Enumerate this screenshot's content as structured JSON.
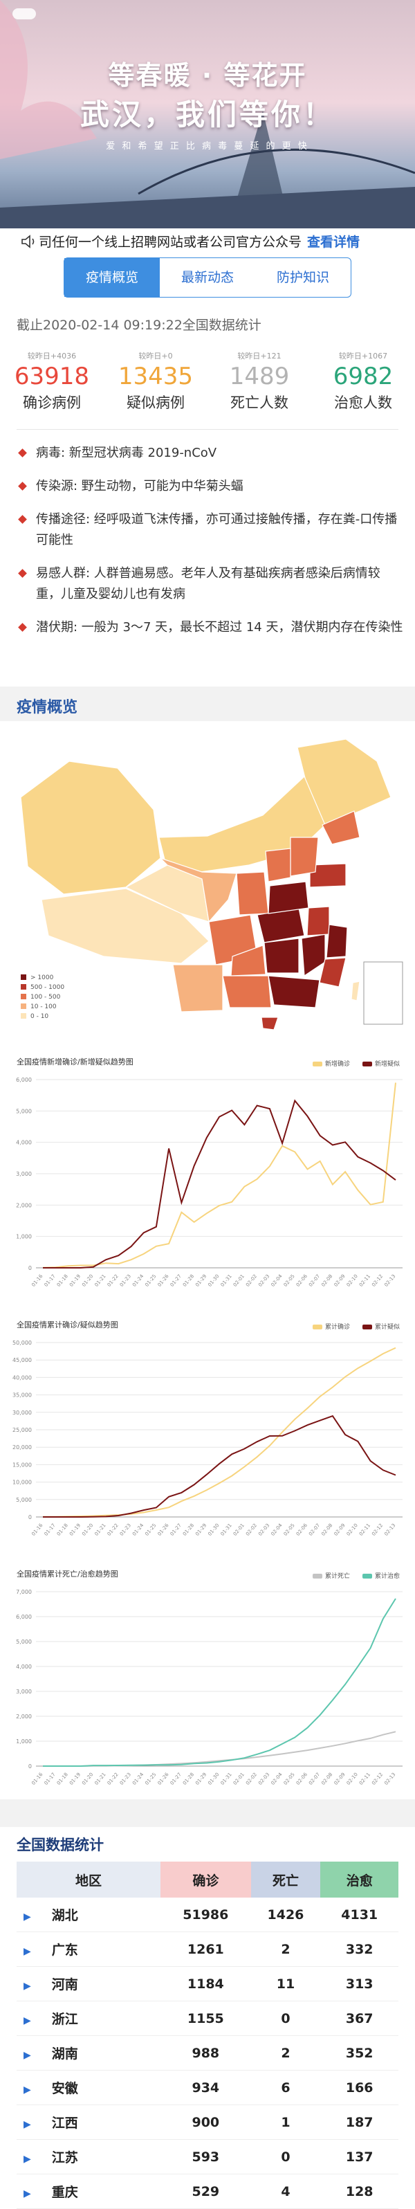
{
  "banner": {
    "line1": "等春暖 · 等花开",
    "line2": "武汉，我们等你！",
    "tagline": "爱 和 希 望 正 比 病 毒 蔓 延 的 更 快"
  },
  "notice": {
    "text": "司任何一个线上招聘网站或者公司官方公众号",
    "link": "查看详情"
  },
  "tabs": [
    "疫情概览",
    "最新动态",
    "防护知识"
  ],
  "update": "截止2020-02-14 09:19:22全国数据统计",
  "stats": [
    {
      "change": "较昨日+4036",
      "value": 63918,
      "label": "确诊病例",
      "color": "#e8483b"
    },
    {
      "change": "较昨日+0",
      "value": 13435,
      "label": "疑似病例",
      "color": "#f0a63a"
    },
    {
      "change": "较昨日+121",
      "value": 1489,
      "label": "死亡人数",
      "color": "#b3b3b3"
    },
    {
      "change": "较昨日+1067",
      "value": 6982,
      "label": "治愈人数",
      "color": "#2ba57a"
    }
  ],
  "facts": [
    "病毒: 新型冠状病毒 2019-nCoV",
    "传染源: 野生动物，可能为中华菊头蝠",
    "传播途径: 经呼吸道飞沫传播，亦可通过接触传播，存在粪-口传播可能性",
    "易感人群: 人群普遍易感。老年人及有基础疾病者感染后病情较重，儿童及婴幼儿也有发病",
    "潜伏期: 一般为 3～7 天，最长不超过 14 天，潜伏期内存在传染性"
  ],
  "section_title": "疫情概览",
  "map_legend": [
    {
      "label": "> 1000",
      "color": "#7a1414"
    },
    {
      "label": "500 - 1000",
      "color": "#b8372a"
    },
    {
      "label": "100 - 500",
      "color": "#e4734c"
    },
    {
      "label": "10 - 100",
      "color": "#f6b27f"
    },
    {
      "label": "0 - 10",
      "color": "#fde4b8"
    }
  ],
  "chart_data": [
    {
      "type": "line",
      "title": "全国疫情新增确诊/新增疑似趋势图",
      "x": [
        "01-16",
        "01-17",
        "01-18",
        "01-19",
        "01-20",
        "01-21",
        "01-22",
        "01-23",
        "01-24",
        "01-25",
        "01-26",
        "01-27",
        "01-28",
        "01-29",
        "01-30",
        "01-31",
        "02-01",
        "02-02",
        "02-03",
        "02-04",
        "02-05",
        "02-06",
        "02-07",
        "02-08",
        "02-09",
        "02-10",
        "02-11",
        "02-12",
        "02-13"
      ],
      "series": [
        {
          "name": "新增确诊",
          "color": "#f7d47e",
          "values": [
            4,
            17,
            59,
            77,
            77,
            149,
            131,
            259,
            444,
            688,
            769,
            1771,
            1459,
            1737,
            1982,
            2102,
            2590,
            2829,
            3235,
            3887,
            3694,
            3143,
            3399,
            2656,
            3062,
            2478,
            2015,
            2100,
            5900
          ]
        },
        {
          "name": "新增疑似",
          "color": "#7a1414",
          "values": [
            0,
            0,
            0,
            0,
            27,
            257,
            393,
            680,
            1118,
            1309,
            3806,
            2077,
            3248,
            4148,
            4812,
            5019,
            4562,
            5173,
            5072,
            3971,
            5328,
            4833,
            4214,
            3916,
            4008,
            3536,
            3342,
            3100,
            2800
          ]
        }
      ],
      "ylim": [
        0,
        6000
      ],
      "yticks": [
        0,
        {
          "value": 1000,
          "label": "1,000"
        },
        {
          "value": 2000,
          "label": "2,000"
        },
        {
          "value": 3000,
          "label": "3,000"
        },
        {
          "value": 4000,
          "label": "4,000"
        },
        {
          "value": 5000,
          "label": "5,000"
        },
        {
          "value": 6000,
          "label": "6,000"
        }
      ],
      "grid": true,
      "legend": "top-right"
    },
    {
      "type": "line",
      "title": "全国疫情累计确诊/疑似趋势图",
      "x": [
        "01-16",
        "01-17",
        "01-18",
        "01-19",
        "01-20",
        "01-21",
        "01-22",
        "01-23",
        "01-24",
        "01-25",
        "01-26",
        "01-27",
        "01-28",
        "01-29",
        "01-30",
        "01-31",
        "02-01",
        "02-02",
        "02-03",
        "02-04",
        "02-05",
        "02-06",
        "02-07",
        "02-08",
        "02-09",
        "02-10",
        "02-11",
        "02-12",
        "02-13"
      ],
      "series": [
        {
          "name": "累计确诊",
          "color": "#f7d47e",
          "values": [
            45,
            62,
            121,
            198,
            291,
            440,
            571,
            830,
            1287,
            1975,
            2744,
            4515,
            5974,
            7711,
            9692,
            11791,
            14380,
            17205,
            20438,
            24324,
            28018,
            31161,
            34546,
            37198,
            40171,
            42638,
            44653,
            46800,
            48500
          ]
        },
        {
          "name": "累计疑似",
          "color": "#7a1414",
          "values": [
            0,
            0,
            0,
            0,
            54,
            120,
            393,
            1072,
            1965,
            2684,
            5794,
            6973,
            9239,
            12167,
            15238,
            17988,
            19544,
            21558,
            23214,
            23260,
            24702,
            26359,
            27657,
            28942,
            23589,
            21675,
            16067,
            13435,
            12000
          ]
        }
      ],
      "ylim": [
        0,
        50000
      ],
      "yticks": [
        0,
        {
          "value": 5000,
          "label": "5,000"
        },
        {
          "value": 10000,
          "label": "10,000"
        },
        {
          "value": 15000,
          "label": "15,000"
        },
        {
          "value": 20000,
          "label": "20,000"
        },
        {
          "value": 25000,
          "label": "25,000"
        },
        {
          "value": 30000,
          "label": "30,000"
        },
        {
          "value": 35000,
          "label": "35,000"
        },
        {
          "value": 40000,
          "label": "40,000"
        },
        {
          "value": 45000,
          "label": "45,000"
        },
        {
          "value": 50000,
          "label": "50,000"
        }
      ],
      "grid": true,
      "legend": "top-right"
    },
    {
      "type": "line",
      "title": "全国疫情累计死亡/治愈趋势图",
      "x": [
        "01-16",
        "01-17",
        "01-18",
        "01-19",
        "01-20",
        "01-21",
        "01-22",
        "01-23",
        "01-24",
        "01-25",
        "01-26",
        "01-27",
        "01-28",
        "01-29",
        "01-30",
        "01-31",
        "02-01",
        "02-02",
        "02-03",
        "02-04",
        "02-05",
        "02-06",
        "02-07",
        "02-08",
        "02-09",
        "02-10",
        "02-11",
        "02-12",
        "02-13"
      ],
      "series": [
        {
          "name": "累计死亡",
          "color": "#c4c4c4",
          "values": [
            0,
            0,
            0,
            0,
            6,
            9,
            17,
            25,
            41,
            56,
            80,
            106,
            132,
            170,
            213,
            259,
            304,
            361,
            425,
            490,
            563,
            636,
            722,
            811,
            908,
            1016,
            1113,
            1259,
            1380
          ]
        },
        {
          "name": "累计治愈",
          "color": "#5cc6ae",
          "values": [
            0,
            0,
            0,
            0,
            25,
            25,
            28,
            34,
            38,
            49,
            51,
            60,
            103,
            124,
            171,
            243,
            328,
            475,
            632,
            892,
            1153,
            1540,
            2050,
            2649,
            3281,
            3996,
            4740,
            5911,
            6723
          ]
        }
      ],
      "ylim": [
        0,
        7000
      ],
      "yticks": [
        0,
        {
          "value": 1000,
          "label": "1,000"
        },
        {
          "value": 2000,
          "label": "2,000"
        },
        {
          "value": 3000,
          "label": "3,000"
        },
        {
          "value": 4000,
          "label": "4,000"
        },
        {
          "value": 5000,
          "label": "5,000"
        },
        {
          "value": 6000,
          "label": "6,000"
        },
        {
          "value": 7000,
          "label": "7,000"
        }
      ],
      "grid": true,
      "legend": "top-right"
    }
  ],
  "table": {
    "title": "全国数据统计",
    "columns": [
      "地区",
      "确诊",
      "死亡",
      "治愈"
    ],
    "rows": [
      [
        "湖北",
        51986,
        1426,
        4131
      ],
      [
        "广东",
        1261,
        2,
        332
      ],
      [
        "河南",
        1184,
        11,
        313
      ],
      [
        "浙江",
        1155,
        0,
        367
      ],
      [
        "湖南",
        988,
        2,
        352
      ],
      [
        "安徽",
        934,
        6,
        166
      ],
      [
        "江西",
        900,
        1,
        187
      ],
      [
        "江苏",
        593,
        0,
        137
      ],
      [
        "重庆",
        529,
        4,
        128
      ]
    ]
  }
}
